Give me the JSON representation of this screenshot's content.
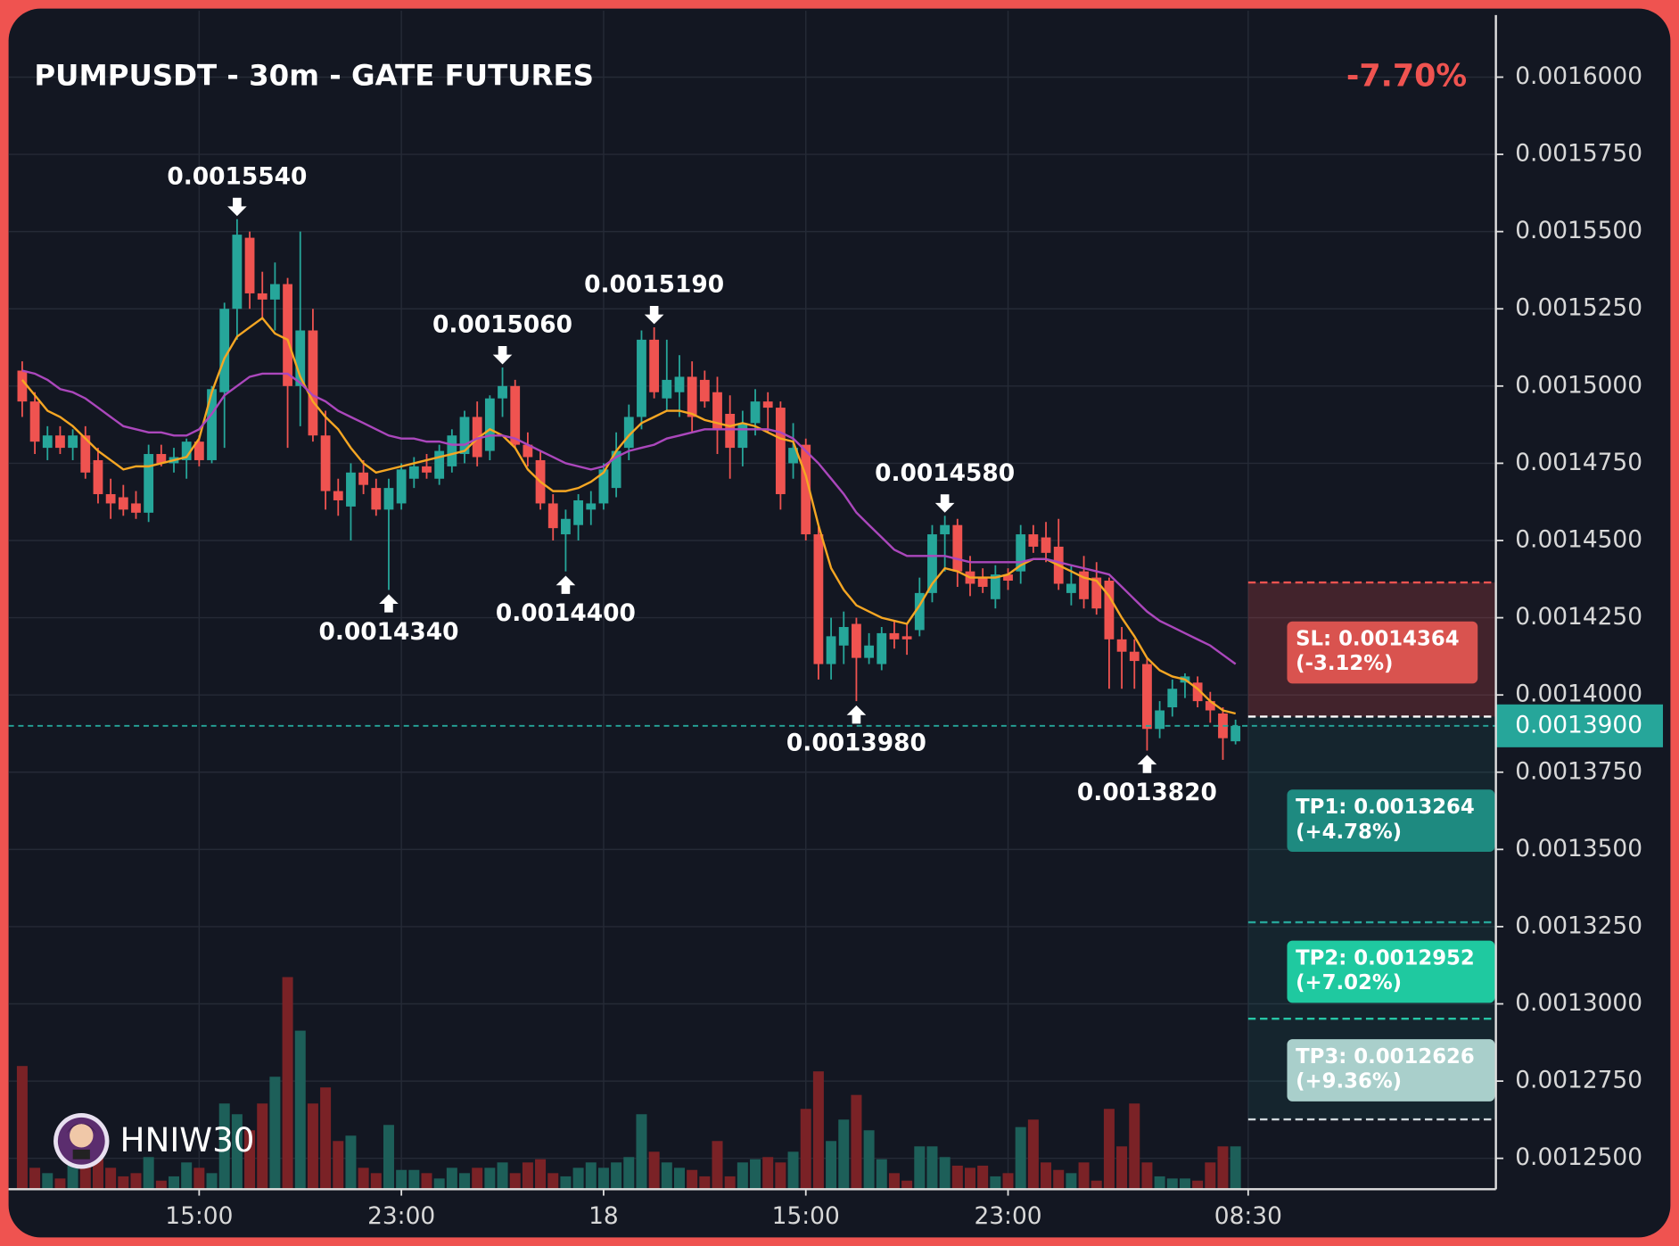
{
  "chart_data": {
    "type": "candlestick",
    "title": "PUMPUSDT - 30m - GATE FUTURES",
    "change_label": "-7.70%",
    "watermark": "HNIW30",
    "xlim": [
      -1.08,
      116.6
    ],
    "xticks": [
      {
        "value": 14,
        "label": "15:00"
      },
      {
        "value": 30,
        "label": "23:00"
      },
      {
        "value": 46,
        "label": "18"
      },
      {
        "value": 62,
        "label": "15:00"
      },
      {
        "value": 78,
        "label": "23:00"
      },
      {
        "value": 97,
        "label": "08:30"
      }
    ],
    "ylim": [
      0.00124,
      0.0016215
    ],
    "yticks": [
      {
        "value": 0.00125,
        "label": "0.0012500"
      },
      {
        "value": 0.001275,
        "label": "0.0012750"
      },
      {
        "value": 0.0013,
        "label": "0.0013000"
      },
      {
        "value": 0.001325,
        "label": "0.0013250"
      },
      {
        "value": 0.00135,
        "label": "0.0013500"
      },
      {
        "value": 0.001375,
        "label": "0.0013750"
      },
      {
        "value": 0.0014,
        "label": "0.0014000"
      },
      {
        "value": 0.001425,
        "label": "0.0014250"
      },
      {
        "value": 0.00145,
        "label": "0.0014500"
      },
      {
        "value": 0.001475,
        "label": "0.0014750"
      },
      {
        "value": 0.0015,
        "label": "0.0015000"
      },
      {
        "value": 0.001525,
        "label": "0.0015250"
      },
      {
        "value": 0.00155,
        "label": "0.0015500"
      },
      {
        "value": 0.001575,
        "label": "0.0015750"
      },
      {
        "value": 0.0016,
        "label": "0.0016000"
      }
    ],
    "grid": true,
    "candle_colors": {
      "up": "#26a69a",
      "down": "#ef5350"
    },
    "volume_colors": {
      "up": "#1d5f59",
      "down": "#7a2226"
    },
    "open": [
      0.001505,
      0.001495,
      0.00148,
      0.001484,
      0.00148,
      0.001484,
      0.001476,
      0.001465,
      0.001464,
      0.001462,
      0.001459,
      0.001478,
      0.001475,
      0.001476,
      0.001482,
      0.001476,
      0.001498,
      0.001525,
      0.001548,
      0.00153,
      0.001528,
      0.001533,
      0.0015,
      0.001518,
      0.001484,
      0.001466,
      0.001461,
      0.001472,
      0.001467,
      0.00146,
      0.001462,
      0.00147,
      0.001474,
      0.00147,
      0.001474,
      0.001478,
      0.00149,
      0.001479,
      0.001496,
      0.0015,
      0.001481,
      0.001476,
      0.001462,
      0.001452,
      0.001455,
      0.00146,
      0.001462,
      0.001467,
      0.00148,
      0.00149,
      0.001515,
      0.001496,
      0.001498,
      0.001503,
      0.001502,
      0.001498,
      0.001491,
      0.00148,
      0.001488,
      0.001495,
      0.001493,
      0.001475,
      0.001481,
      0.001452,
      0.00141,
      0.001416,
      0.001423,
      0.001412,
      0.00141,
      0.00142,
      0.001419,
      0.001421,
      0.001433,
      0.001452,
      0.001455,
      0.00144,
      0.001438,
      0.001431,
      0.001439,
      0.00144,
      0.001452,
      0.001451,
      0.001448,
      0.001433,
      0.00144,
      0.001438,
      0.001437,
      0.001418,
      0.001414,
      0.00141,
      0.001389,
      0.001396,
      0.001404,
      0.001404,
      0.001398,
      0.001394,
      0.001385
    ],
    "high": [
      0.001508,
      0.001498,
      0.001487,
      0.001487,
      0.001486,
      0.001487,
      0.00148,
      0.00147,
      0.001468,
      0.001466,
      0.001481,
      0.001481,
      0.00148,
      0.001483,
      0.001484,
      0.0015,
      0.001527,
      0.001554,
      0.00155,
      0.001537,
      0.00154,
      0.001535,
      0.00155,
      0.001525,
      0.001492,
      0.00147,
      0.001475,
      0.001476,
      0.00147,
      0.00147,
      0.001475,
      0.001477,
      0.001478,
      0.001481,
      0.001486,
      0.001492,
      0.001495,
      0.001497,
      0.001506,
      0.001502,
      0.001485,
      0.001479,
      0.001465,
      0.00146,
      0.001465,
      0.001466,
      0.001475,
      0.001485,
      0.001494,
      0.001518,
      0.001519,
      0.001515,
      0.00151,
      0.001508,
      0.001505,
      0.001503,
      0.001497,
      0.001492,
      0.001499,
      0.001498,
      0.001495,
      0.001488,
      0.001483,
      0.001455,
      0.001425,
      0.001427,
      0.001425,
      0.00142,
      0.001422,
      0.001424,
      0.001423,
      0.001438,
      0.001455,
      0.001458,
      0.001457,
      0.001445,
      0.001441,
      0.001442,
      0.001441,
      0.001455,
      0.001455,
      0.001456,
      0.001457,
      0.001442,
      0.001445,
      0.001443,
      0.001438,
      0.001422,
      0.001418,
      0.001412,
      0.001398,
      0.001405,
      0.001407,
      0.001406,
      0.001401,
      0.001396,
      0.001392
    ],
    "low": [
      0.00149,
      0.001478,
      0.001476,
      0.001478,
      0.001476,
      0.00147,
      0.001462,
      0.001457,
      0.001458,
      0.001457,
      0.001456,
      0.001474,
      0.001472,
      0.00147,
      0.001474,
      0.001475,
      0.00148,
      0.001515,
      0.001525,
      0.001522,
      0.001518,
      0.00148,
      0.001487,
      0.001482,
      0.00146,
      0.001458,
      0.00145,
      0.001465,
      0.001458,
      0.001434,
      0.00146,
      0.001467,
      0.00147,
      0.001468,
      0.001472,
      0.001475,
      0.001474,
      0.001476,
      0.00149,
      0.00148,
      0.001474,
      0.00146,
      0.00145,
      0.00144,
      0.00145,
      0.001455,
      0.00146,
      0.001464,
      0.001476,
      0.001486,
      0.001496,
      0.001492,
      0.00149,
      0.001485,
      0.001493,
      0.001478,
      0.00147,
      0.001474,
      0.001484,
      0.001485,
      0.00146,
      0.00147,
      0.00145,
      0.001405,
      0.001405,
      0.00141,
      0.001398,
      0.00141,
      0.001408,
      0.001415,
      0.001413,
      0.001419,
      0.00143,
      0.00144,
      0.001435,
      0.001432,
      0.001433,
      0.001428,
      0.001434,
      0.001436,
      0.001446,
      0.001443,
      0.001434,
      0.001429,
      0.001428,
      0.001426,
      0.001402,
      0.001402,
      0.001402,
      0.001382,
      0.001386,
      0.001393,
      0.001399,
      0.001396,
      0.001391,
      0.001379,
      0.001384
    ],
    "close": [
      0.001495,
      0.001482,
      0.001484,
      0.00148,
      0.001484,
      0.001472,
      0.001465,
      0.001462,
      0.00146,
      0.001459,
      0.001478,
      0.001475,
      0.001477,
      0.001482,
      0.001476,
      0.001499,
      0.001525,
      0.001549,
      0.00153,
      0.001528,
      0.001533,
      0.0015,
      0.001518,
      0.001484,
      0.001466,
      0.001463,
      0.001472,
      0.001468,
      0.00146,
      0.001467,
      0.001473,
      0.001474,
      0.001472,
      0.001479,
      0.001484,
      0.00149,
      0.001477,
      0.001496,
      0.0015,
      0.001481,
      0.001477,
      0.001462,
      0.001454,
      0.001457,
      0.001463,
      0.001462,
      0.001473,
      0.001479,
      0.00149,
      0.001515,
      0.001498,
      0.001502,
      0.001503,
      0.00149,
      0.001495,
      0.001486,
      0.00148,
      0.001488,
      0.001495,
      0.001493,
      0.001465,
      0.00148,
      0.001452,
      0.00141,
      0.001419,
      0.001422,
      0.001412,
      0.001416,
      0.00142,
      0.001418,
      0.001418,
      0.001433,
      0.001452,
      0.001455,
      0.00144,
      0.001436,
      0.001435,
      0.001439,
      0.001437,
      0.001452,
      0.001448,
      0.001446,
      0.001436,
      0.001436,
      0.001431,
      0.001428,
      0.001418,
      0.001414,
      0.001411,
      0.001389,
      0.001395,
      0.001402,
      0.001406,
      0.001398,
      0.001395,
      0.001386,
      0.00139
    ],
    "volume": [
      115,
      20,
      15,
      10,
      45,
      45,
      30,
      20,
      12,
      15,
      30,
      8,
      12,
      25,
      20,
      15,
      80,
      70,
      55,
      80,
      105,
      198,
      148,
      80,
      95,
      45,
      50,
      20,
      15,
      60,
      18,
      18,
      15,
      10,
      20,
      15,
      20,
      20,
      25,
      15,
      25,
      28,
      15,
      12,
      20,
      25,
      20,
      25,
      30,
      70,
      35,
      25,
      20,
      18,
      12,
      45,
      12,
      25,
      28,
      30,
      25,
      35,
      75,
      110,
      45,
      65,
      88,
      55,
      28,
      15,
      8,
      40,
      40,
      30,
      22,
      20,
      22,
      12,
      15,
      58,
      65,
      25,
      18,
      15,
      25,
      8,
      75,
      40,
      80,
      25,
      12,
      10,
      10,
      8,
      25,
      40,
      40
    ],
    "lines": [
      {
        "color": "#f5a623",
        "values": [
          0.001502,
          0.001497,
          0.001492,
          0.00149,
          0.001487,
          0.001483,
          0.001479,
          0.001476,
          0.001473,
          0.001474,
          0.001474,
          0.001475,
          0.001476,
          0.001477,
          0.001483,
          0.001498,
          0.001509,
          0.001516,
          0.001519,
          0.001522,
          0.001517,
          0.001515,
          0.001503,
          0.001495,
          0.00149,
          0.001486,
          0.00148,
          0.001475,
          0.001472,
          0.001473,
          0.001474,
          0.001475,
          0.001476,
          0.001477,
          0.001478,
          0.001479,
          0.001483,
          0.001486,
          0.001484,
          0.00148,
          0.001473,
          0.001469,
          0.001466,
          0.001466,
          0.001467,
          0.001469,
          0.001472,
          0.001479,
          0.001484,
          0.001488,
          0.00149,
          0.001492,
          0.001492,
          0.001491,
          0.001489,
          0.001488,
          0.001487,
          0.001488,
          0.001487,
          0.001485,
          0.001483,
          0.001482,
          0.001471,
          0.001455,
          0.001441,
          0.001434,
          0.001429,
          0.001427,
          0.001425,
          0.001424,
          0.001423,
          0.001429,
          0.001436,
          0.001441,
          0.00144,
          0.001438,
          0.001438,
          0.001438,
          0.001439,
          0.001442,
          0.001444,
          0.001444,
          0.001442,
          0.00144,
          0.001438,
          0.001437,
          0.001432,
          0.001425,
          0.001419,
          0.001412,
          0.001408,
          0.001406,
          0.001405,
          0.001402,
          0.001398,
          0.001395,
          0.001394
        ]
      },
      {
        "color": "#ab47bc",
        "values": [
          0.001505,
          0.001504,
          0.001502,
          0.001499,
          0.001498,
          0.001496,
          0.001493,
          0.00149,
          0.001487,
          0.001486,
          0.001485,
          0.001485,
          0.001484,
          0.001484,
          0.001486,
          0.001491,
          0.001497,
          0.0015,
          0.001503,
          0.001504,
          0.001504,
          0.001504,
          0.001501,
          0.001497,
          0.001495,
          0.001492,
          0.00149,
          0.001488,
          0.001486,
          0.001484,
          0.001483,
          0.001483,
          0.001482,
          0.001482,
          0.001481,
          0.001481,
          0.001483,
          0.001484,
          0.001484,
          0.001483,
          0.001481,
          0.001479,
          0.001477,
          0.001475,
          0.001474,
          0.001473,
          0.001474,
          0.001477,
          0.001479,
          0.00148,
          0.001481,
          0.001483,
          0.001484,
          0.001485,
          0.001486,
          0.001486,
          0.001486,
          0.001486,
          0.001486,
          0.001486,
          0.001485,
          0.001483,
          0.001479,
          0.001475,
          0.00147,
          0.001465,
          0.001459,
          0.001455,
          0.001451,
          0.001447,
          0.001445,
          0.001445,
          0.001445,
          0.001445,
          0.001444,
          0.001443,
          0.001443,
          0.001443,
          0.001443,
          0.001443,
          0.001444,
          0.001444,
          0.001443,
          0.001442,
          0.001441,
          0.00144,
          0.001439,
          0.001435,
          0.001431,
          0.001427,
          0.001424,
          0.001422,
          0.00142,
          0.001418,
          0.001416,
          0.001413,
          0.00141
        ]
      }
    ],
    "high_labels": [
      {
        "index": 17,
        "value": 0.001554,
        "label": "0.0015540"
      },
      {
        "index": 38,
        "value": 0.001506,
        "label": "0.0015060"
      },
      {
        "index": 50,
        "value": 0.001519,
        "label": "0.0015190"
      },
      {
        "index": 73,
        "value": 0.001458,
        "label": "0.0014580"
      }
    ],
    "low_labels": [
      {
        "index": 29,
        "value": 0.001434,
        "label": "0.0014340"
      },
      {
        "index": 43,
        "value": 0.00144,
        "label": "0.0014400"
      },
      {
        "index": 66,
        "value": 0.001398,
        "label": "0.0013980"
      },
      {
        "index": 89,
        "value": 0.001382,
        "label": "0.0013820"
      }
    ],
    "price_line": {
      "value": 0.00139,
      "label": "0.0013900",
      "color": "#26a69a"
    },
    "entry": 0.001393,
    "levels": [
      {
        "value": 0.0014364,
        "label": "SL: 0.0014364",
        "change": "(-3.12%)",
        "color": "#d9534f",
        "line_color": "#ef5350"
      },
      {
        "value": 0.0013264,
        "label": "TP1: 0.0013264",
        "change": "(+4.78%)",
        "color": "#1e8a80",
        "line_color": "#26a69a"
      },
      {
        "value": 0.0012952,
        "label": "TP2: 0.0012952",
        "change": "(+7.02%)",
        "color": "#1fc9a0",
        "line_color": "#26c6a6"
      },
      {
        "value": 0.0012626,
        "label": "TP3: 0.0012626",
        "change": "(+9.36%)",
        "color": "#a9cfcb",
        "line_color": "#d0d8dc"
      }
    ]
  }
}
